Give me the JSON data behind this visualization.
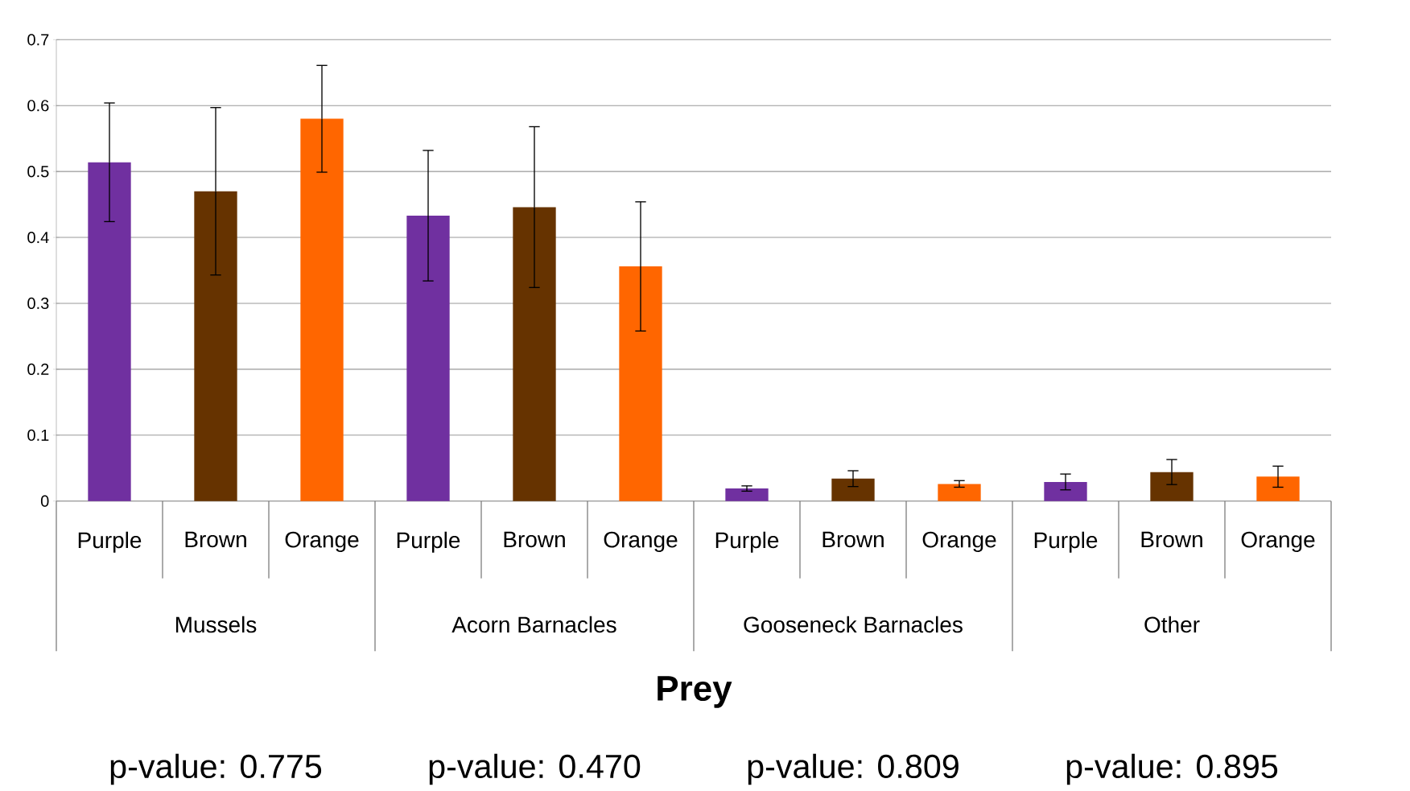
{
  "chart_data": {
    "type": "bar",
    "xlabel": "Prey",
    "categories": [
      "Purple",
      "Brown",
      "Orange",
      "Purple",
      "Brown",
      "Orange",
      "Purple",
      "Brown",
      "Orange",
      "Purple",
      "Brown",
      "Orange"
    ],
    "values": [
      0.514,
      0.47,
      0.58,
      0.433,
      0.446,
      0.356,
      0.019,
      0.034,
      0.026,
      0.029,
      0.044,
      0.037
    ],
    "errors": [
      0.09,
      0.127,
      0.081,
      0.099,
      0.122,
      0.098,
      0.004,
      0.012,
      0.005,
      0.012,
      0.019,
      0.016
    ],
    "colors": [
      "#7030a0",
      "#663300",
      "#ff6600",
      "#7030a0",
      "#663300",
      "#ff6600",
      "#7030a0",
      "#663300",
      "#ff6600",
      "#7030a0",
      "#663300",
      "#ff6600"
    ],
    "ylim": [
      0,
      0.7
    ],
    "yticks": [
      0,
      0.1,
      0.2,
      0.3,
      0.4,
      0.5,
      0.6,
      0.7
    ],
    "grid": "y",
    "annotations": [
      "Mussels",
      "Acorn Barnacles",
      "Gooseneck Barnacles",
      "Other",
      "p-value: 0.775",
      "p-value: 0.470",
      "p-value: 0.809",
      "p-value: 0.895"
    ]
  }
}
